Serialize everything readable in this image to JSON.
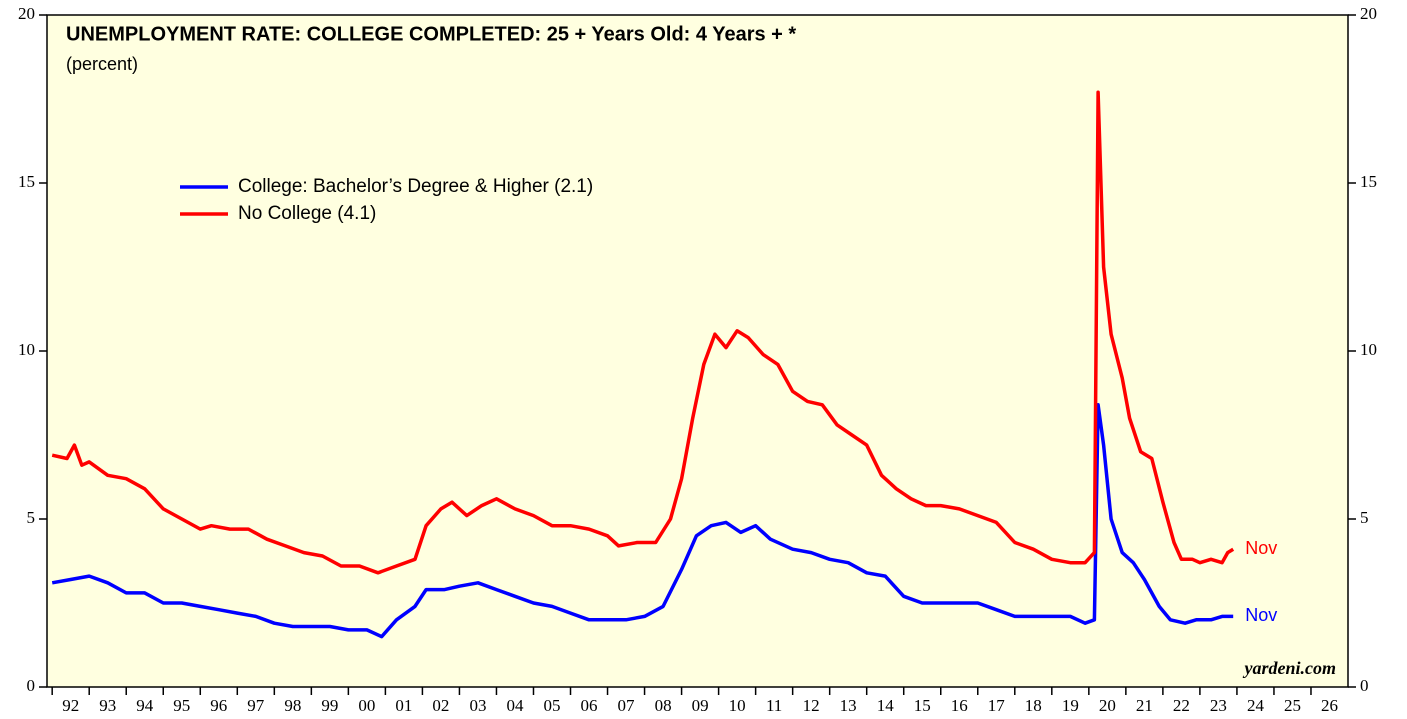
{
  "chart_data": {
    "type": "line",
    "title": "UNEMPLOYMENT RATE: COLLEGE COMPLETED: 25 + Years Old: 4 Years + *",
    "subtitle": "(percent)",
    "source": "yardeni.com",
    "series": [
      {
        "name": "College: Bachelor’s Degree & Higher (2.1)",
        "color": "#0000ff",
        "end_label": "Nov",
        "x": [
          1992.0,
          1992.5,
          1993.0,
          1993.5,
          1994.0,
          1994.5,
          1995.0,
          1995.5,
          1996.0,
          1996.5,
          1997.0,
          1997.5,
          1998.0,
          1998.5,
          1999.0,
          1999.5,
          2000.0,
          2000.5,
          2000.9,
          2001.3,
          2001.8,
          2002.1,
          2002.6,
          2003.0,
          2003.5,
          2004.0,
          2004.5,
          2005.0,
          2005.5,
          2006.0,
          2006.5,
          2007.0,
          2007.5,
          2008.0,
          2008.5,
          2009.0,
          2009.4,
          2009.8,
          2010.2,
          2010.6,
          2011.0,
          2011.4,
          2012.0,
          2012.5,
          2013.0,
          2013.5,
          2014.0,
          2014.5,
          2015.0,
          2015.5,
          2016.0,
          2016.5,
          2017.0,
          2017.5,
          2018.0,
          2018.5,
          2019.0,
          2019.5,
          2019.9,
          2020.15,
          2020.25,
          2020.4,
          2020.6,
          2020.9,
          2021.2,
          2021.5,
          2021.9,
          2022.2,
          2022.6,
          2022.9,
          2023.3,
          2023.6,
          2023.9
        ],
        "values": [
          3.1,
          3.2,
          3.3,
          3.1,
          2.8,
          2.8,
          2.5,
          2.5,
          2.4,
          2.3,
          2.2,
          2.1,
          1.9,
          1.8,
          1.8,
          1.8,
          1.7,
          1.7,
          1.5,
          2.0,
          2.4,
          2.9,
          2.9,
          3.0,
          3.1,
          2.9,
          2.7,
          2.5,
          2.4,
          2.2,
          2.0,
          2.0,
          2.0,
          2.1,
          2.4,
          3.5,
          4.5,
          4.8,
          4.9,
          4.6,
          4.8,
          4.4,
          4.1,
          4.0,
          3.8,
          3.7,
          3.4,
          3.3,
          2.7,
          2.5,
          2.5,
          2.5,
          2.5,
          2.3,
          2.1,
          2.1,
          2.1,
          2.1,
          1.9,
          2.0,
          8.4,
          7.2,
          5.0,
          4.0,
          3.7,
          3.2,
          2.4,
          2.0,
          1.9,
          2.0,
          2.0,
          2.1,
          2.1
        ]
      },
      {
        "name": "No College (4.1)",
        "color": "#ff0000",
        "end_label": "Nov",
        "x": [
          1992.0,
          1992.4,
          1992.6,
          1992.8,
          1993.0,
          1993.5,
          1994.0,
          1994.5,
          1995.0,
          1995.5,
          1996.0,
          1996.3,
          1996.8,
          1997.3,
          1997.8,
          1998.3,
          1998.8,
          1999.3,
          1999.8,
          2000.3,
          2000.8,
          2001.3,
          2001.8,
          2002.1,
          2002.5,
          2002.8,
          2003.2,
          2003.6,
          2004.0,
          2004.5,
          2005.0,
          2005.5,
          2006.0,
          2006.5,
          2007.0,
          2007.3,
          2007.8,
          2008.3,
          2008.7,
          2009.0,
          2009.3,
          2009.6,
          2009.9,
          2010.2,
          2010.5,
          2010.8,
          2011.2,
          2011.6,
          2012.0,
          2012.4,
          2012.8,
          2013.2,
          2013.6,
          2014.0,
          2014.4,
          2014.8,
          2015.2,
          2015.6,
          2016.0,
          2016.5,
          2017.0,
          2017.5,
          2018.0,
          2018.5,
          2019.0,
          2019.5,
          2019.9,
          2020.15,
          2020.25,
          2020.4,
          2020.6,
          2020.9,
          2021.1,
          2021.4,
          2021.7,
          2022.0,
          2022.3,
          2022.5,
          2022.8,
          2023.0,
          2023.3,
          2023.6,
          2023.75,
          2023.9
        ],
        "values": [
          6.9,
          6.8,
          7.2,
          6.6,
          6.7,
          6.3,
          6.2,
          5.9,
          5.3,
          5.0,
          4.7,
          4.8,
          4.7,
          4.7,
          4.4,
          4.2,
          4.0,
          3.9,
          3.6,
          3.6,
          3.4,
          3.6,
          3.8,
          4.8,
          5.3,
          5.5,
          5.1,
          5.4,
          5.6,
          5.3,
          5.1,
          4.8,
          4.8,
          4.7,
          4.5,
          4.2,
          4.3,
          4.3,
          5.0,
          6.2,
          8.0,
          9.6,
          10.5,
          10.1,
          10.6,
          10.4,
          9.9,
          9.6,
          8.8,
          8.5,
          8.4,
          7.8,
          7.5,
          7.2,
          6.3,
          5.9,
          5.6,
          5.4,
          5.4,
          5.3,
          5.1,
          4.9,
          4.3,
          4.1,
          3.8,
          3.7,
          3.7,
          4.0,
          17.7,
          12.5,
          10.5,
          9.2,
          8.0,
          7.0,
          6.8,
          5.5,
          4.3,
          3.8,
          3.8,
          3.7,
          3.8,
          3.7,
          4.0,
          4.1
        ]
      }
    ],
    "xlim": [
      1991.86,
      2027
    ],
    "xticks": [
      {
        "value": 1992,
        "label": "92"
      },
      {
        "value": 1993,
        "label": "93"
      },
      {
        "value": 1994,
        "label": "94"
      },
      {
        "value": 1995,
        "label": "95"
      },
      {
        "value": 1996,
        "label": "96"
      },
      {
        "value": 1997,
        "label": "97"
      },
      {
        "value": 1998,
        "label": "98"
      },
      {
        "value": 1999,
        "label": "99"
      },
      {
        "value": 2000,
        "label": "00"
      },
      {
        "value": 2001,
        "label": "01"
      },
      {
        "value": 2002,
        "label": "02"
      },
      {
        "value": 2003,
        "label": "03"
      },
      {
        "value": 2004,
        "label": "04"
      },
      {
        "value": 2005,
        "label": "05"
      },
      {
        "value": 2006,
        "label": "06"
      },
      {
        "value": 2007,
        "label": "07"
      },
      {
        "value": 2008,
        "label": "08"
      },
      {
        "value": 2009,
        "label": "09"
      },
      {
        "value": 2010,
        "label": "10"
      },
      {
        "value": 2011,
        "label": "11"
      },
      {
        "value": 2012,
        "label": "12"
      },
      {
        "value": 2013,
        "label": "13"
      },
      {
        "value": 2014,
        "label": "14"
      },
      {
        "value": 2015,
        "label": "15"
      },
      {
        "value": 2016,
        "label": "16"
      },
      {
        "value": 2017,
        "label": "17"
      },
      {
        "value": 2018,
        "label": "18"
      },
      {
        "value": 2019,
        "label": "19"
      },
      {
        "value": 2020,
        "label": "20"
      },
      {
        "value": 2021,
        "label": "21"
      },
      {
        "value": 2022,
        "label": "22"
      },
      {
        "value": 2023,
        "label": "23"
      },
      {
        "value": 2024,
        "label": "24"
      },
      {
        "value": 2025,
        "label": "25"
      },
      {
        "value": 2026,
        "label": "26"
      }
    ],
    "ylim": [
      0,
      20
    ],
    "yticks": [
      0,
      5,
      10,
      15,
      20
    ],
    "y2lim": [
      0,
      20
    ],
    "y2ticks": [
      0,
      5,
      10,
      15,
      20
    ]
  }
}
